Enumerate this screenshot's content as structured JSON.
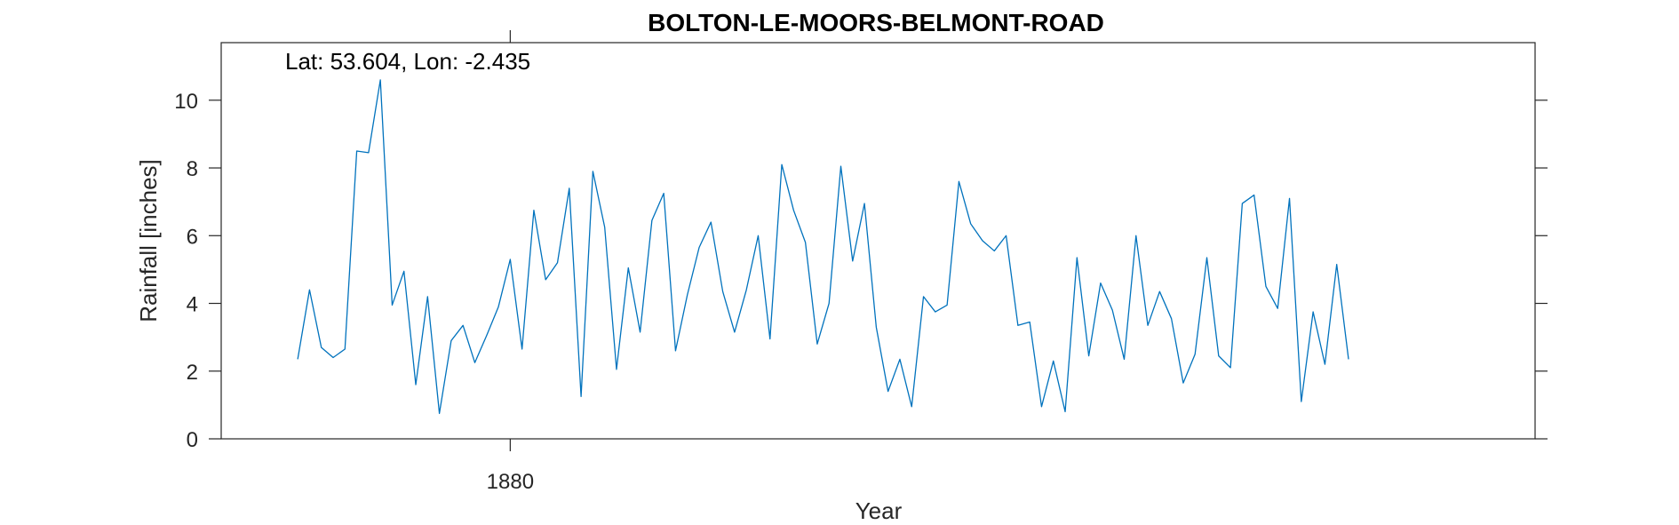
{
  "chart_data": {
    "type": "line",
    "title": "BOLTON-LE-MOORS-BELMONT-ROAD",
    "xlabel": "Year",
    "ylabel": "Rainfall [inches]",
    "annotation": "Lat: 53.604, Lon: -2.435",
    "xlim": [
      1855.52,
      1966.8
    ],
    "ylim": [
      0,
      11.7
    ],
    "x_ticks": [
      1880
    ],
    "x_tick_labels": [
      "1880"
    ],
    "y_ticks": [
      0,
      2,
      4,
      6,
      8,
      10
    ],
    "y_tick_labels": [
      "0",
      "2",
      "4",
      "6",
      "8",
      "10"
    ],
    "grid": false,
    "series_color": "#0072bd",
    "series": [
      {
        "x_start": 1862,
        "x_step": 1,
        "values": [
          2.35,
          4.4,
          2.7,
          2.4,
          2.65,
          8.5,
          8.45,
          10.6,
          3.95,
          4.95,
          1.6,
          4.2,
          0.75,
          2.9,
          3.35,
          2.25,
          3.05,
          3.9,
          5.3,
          2.65,
          6.75,
          4.7,
          5.2,
          7.4,
          1.25,
          7.9,
          6.25,
          2.05,
          5.05,
          3.15,
          6.45,
          7.25,
          2.6,
          4.25,
          5.65,
          6.4,
          4.35,
          3.15,
          4.4,
          6.0,
          2.95,
          8.1,
          6.75,
          5.8,
          2.8,
          4.0,
          8.05,
          5.25,
          6.95,
          3.3,
          1.4,
          2.35,
          0.95,
          4.2,
          3.75,
          3.95,
          7.6,
          6.35,
          5.85,
          5.55,
          6.0,
          3.35,
          3.45,
          0.95,
          2.3,
          0.8,
          5.35,
          2.45,
          4.6,
          3.8,
          2.35,
          6.0,
          3.35,
          4.35,
          3.55,
          1.65,
          2.5,
          5.35,
          2.45,
          2.1,
          6.95,
          7.2,
          4.5,
          3.85,
          7.1,
          1.1,
          3.75,
          2.2,
          5.15,
          2.35
        ]
      }
    ]
  }
}
